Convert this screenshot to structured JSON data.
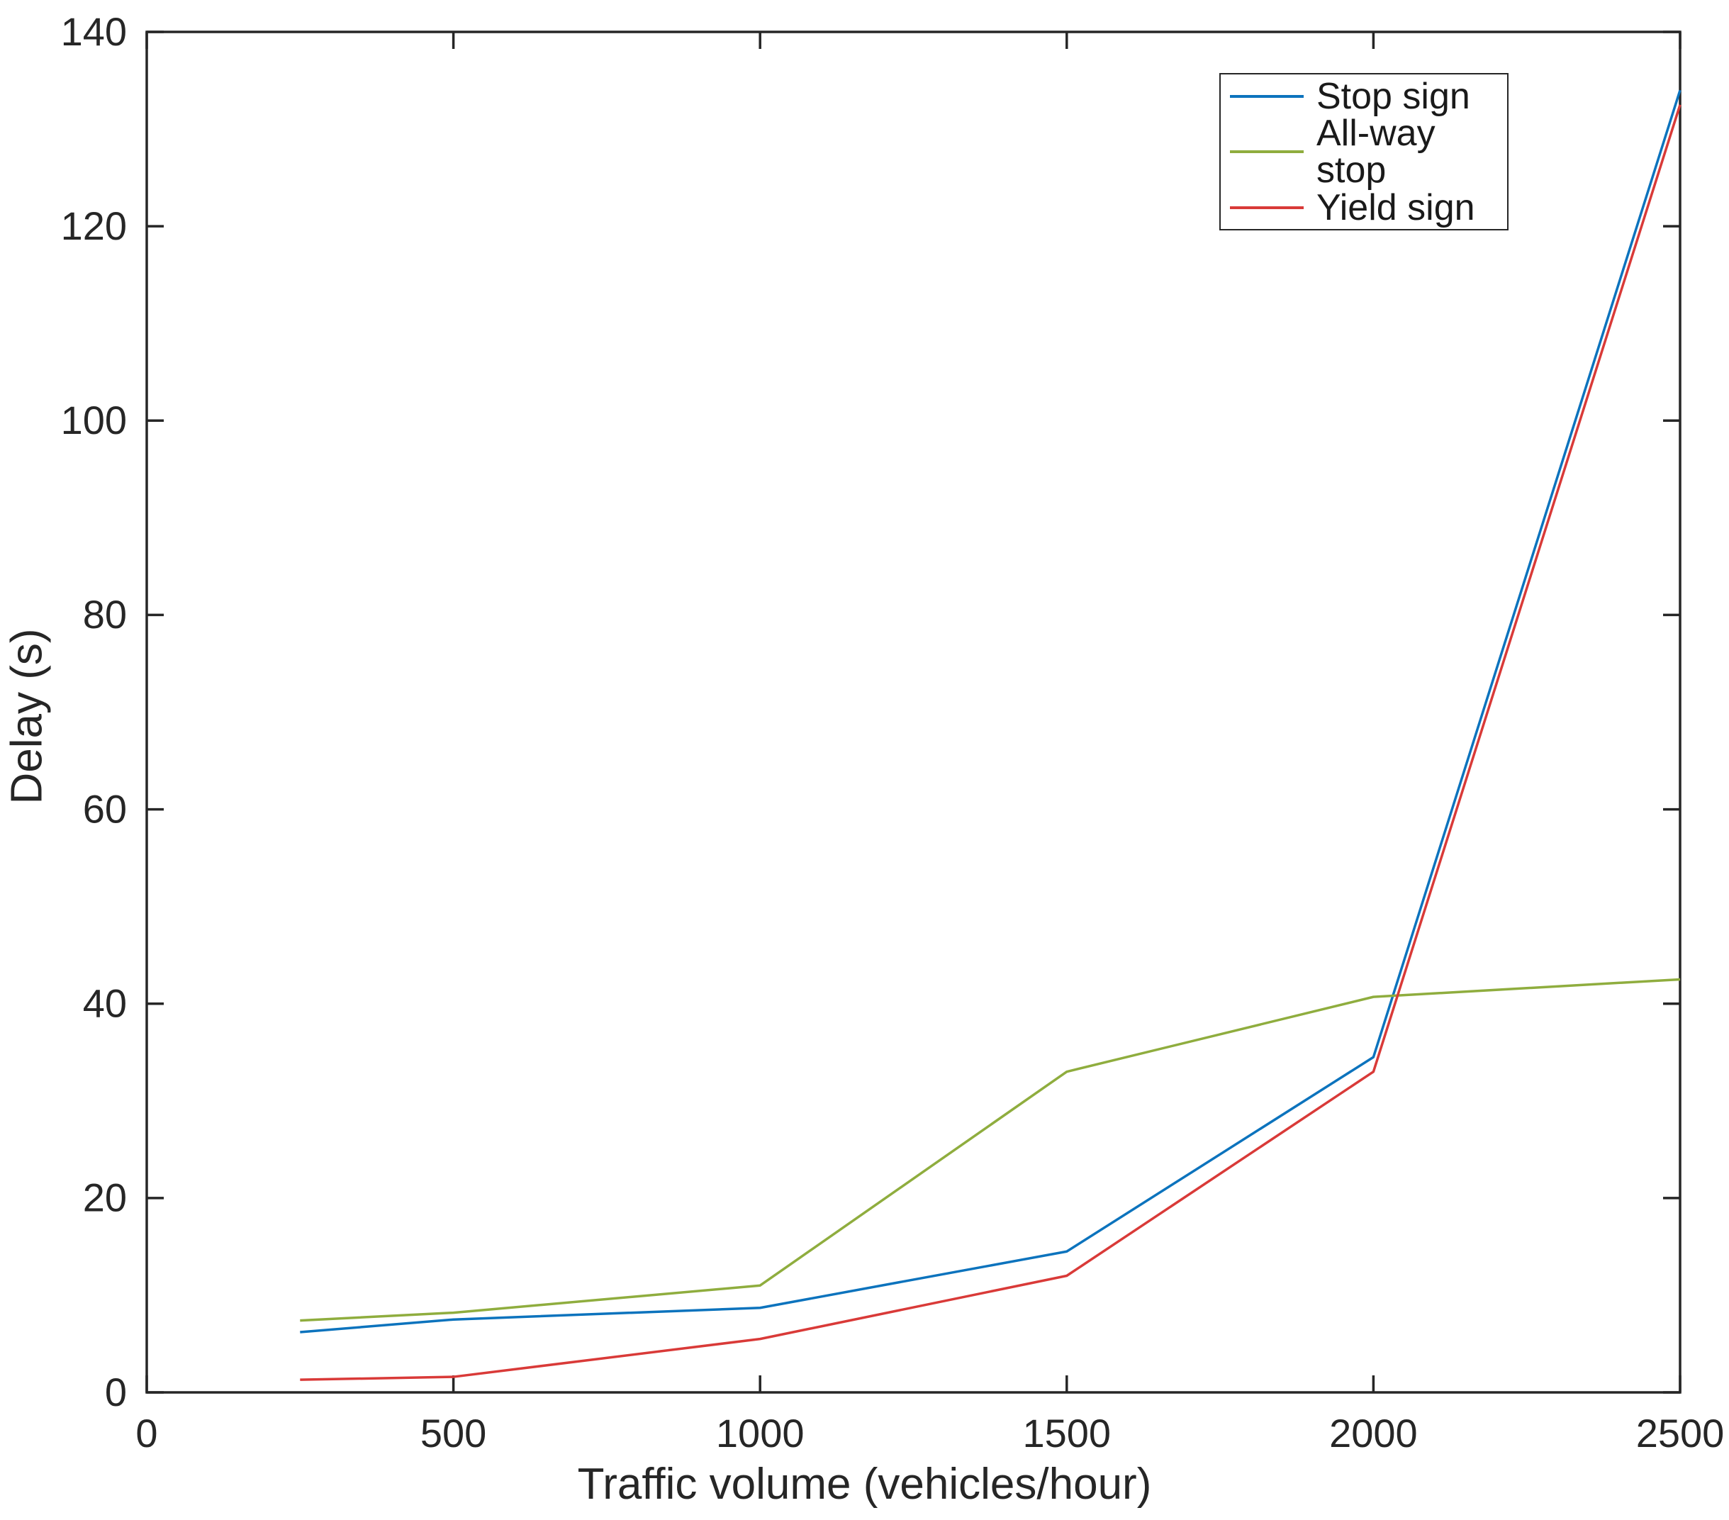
{
  "chart_data": {
    "type": "line",
    "title": "",
    "xlabel": "Traffic volume (vehicles/hour)",
    "ylabel": "Delay (s)",
    "x": [
      250,
      500,
      1000,
      1500,
      2000,
      2500
    ],
    "series": [
      {
        "name": "Stop sign",
        "color": "#0C73BD",
        "values": [
          6.2,
          7.5,
          8.7,
          14.5,
          34.5,
          134
        ]
      },
      {
        "name": "All-way stop",
        "color": "#8FAD3E",
        "values": [
          7.4,
          8.2,
          11,
          33,
          40.7,
          42.5
        ]
      },
      {
        "name": "Yield sign",
        "color": "#D93A38",
        "values": [
          1.3,
          1.6,
          5.5,
          12,
          33,
          132.5
        ]
      }
    ],
    "xlim": [
      0,
      2500
    ],
    "ylim": [
      0,
      140
    ],
    "xticks": [
      0,
      500,
      1000,
      1500,
      2000,
      2500
    ],
    "yticks": [
      0,
      20,
      40,
      60,
      80,
      100,
      120,
      140
    ],
    "grid": false,
    "legend_position": "top-right",
    "axis_color": "#262626",
    "background_color": "#ffffff"
  }
}
